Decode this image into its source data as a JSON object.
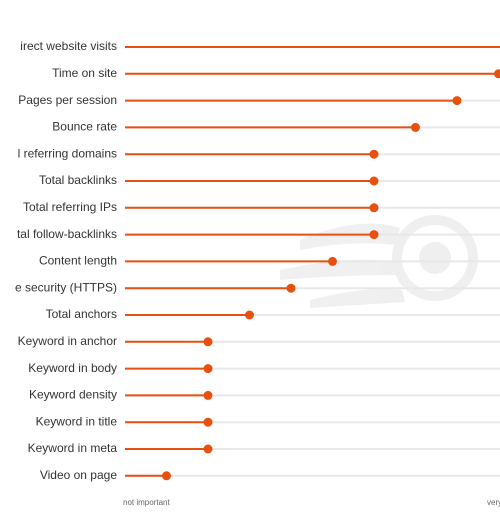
{
  "chart_data": {
    "type": "lollipop",
    "categories": [
      "irect website visits",
      "Time on site",
      "Pages per session",
      "Bounce rate",
      "l referring domains",
      "Total backlinks",
      "Total referring IPs",
      "tal follow-backlinks",
      "Content length",
      "e security (HTTPS)",
      "Total anchors",
      "Keyword in anchor",
      "Keyword in body",
      "Keyword density",
      "Keyword in title",
      "Keyword in meta",
      "Video on page"
    ],
    "values": [
      10,
      9,
      8,
      7,
      6,
      6,
      6,
      6,
      5,
      4,
      3,
      2,
      2,
      2,
      2,
      2,
      1
    ],
    "color": "#e8500f",
    "track_color": "#e8e8e8",
    "xlim": [
      0,
      12
    ],
    "x_start_label": "not important",
    "x_end_label": "very"
  }
}
